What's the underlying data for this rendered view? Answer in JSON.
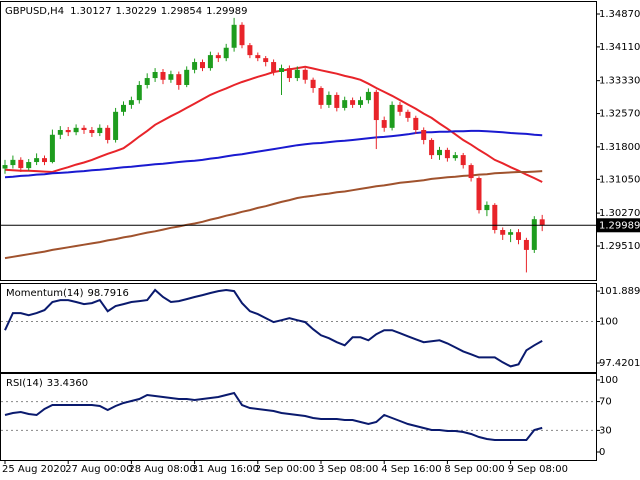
{
  "chart_data": [
    {
      "type": "candlestick",
      "title": "GBPUSD,H4",
      "categories": [
        "25 Aug 2020",
        null,
        null,
        null,
        null,
        null,
        null,
        null,
        "27 Aug 00:00",
        null,
        null,
        null,
        null,
        null,
        null,
        null,
        "28 Aug 08:00",
        null,
        null,
        null,
        null,
        null,
        null,
        null,
        "31 Aug 16:00",
        null,
        null,
        null,
        null,
        null,
        null,
        null,
        "2 Sep 00:00",
        null,
        null,
        null,
        null,
        null,
        null,
        null,
        "3 Sep 08:00",
        null,
        null,
        null,
        null,
        null,
        null,
        null,
        "4 Sep 16:00",
        null,
        null,
        null,
        null,
        null,
        null,
        null,
        "8 Sep 00:00",
        null,
        null,
        null,
        null,
        null,
        null,
        null,
        "9 Sep 08:00",
        null,
        null,
        null,
        null
      ],
      "open": [
        1.313,
        1.3138,
        1.315,
        1.3131,
        1.3145,
        1.3154,
        1.3145,
        1.3208,
        1.3219,
        1.3214,
        1.3224,
        1.3219,
        1.3212,
        1.3224,
        1.3196,
        1.3261,
        1.3277,
        1.3288,
        1.3323,
        1.3339,
        1.3353,
        1.3335,
        1.3348,
        1.3323,
        1.3358,
        1.3376,
        1.3362,
        1.3392,
        1.3385,
        1.3409,
        1.3462,
        1.3415,
        1.3392,
        1.3385,
        1.3376,
        1.3353,
        1.3362,
        1.3339,
        1.3358,
        1.3335,
        1.3316,
        1.3277,
        1.33,
        1.327,
        1.3288,
        1.3277,
        1.3288,
        1.3307,
        1.3242,
        1.3224,
        1.3277,
        1.3261,
        1.3247,
        1.3219,
        1.3196,
        1.3161,
        1.3173,
        1.3154,
        1.3161,
        1.3138,
        1.3108,
        1.3034,
        1.3046,
        1.2988,
        1.2977,
        1.2983,
        1.2965,
        1.2942,
        1.30127
      ],
      "high": [
        1.315,
        1.316,
        1.3156,
        1.3152,
        1.3165,
        1.316,
        1.322,
        1.3228,
        1.3226,
        1.3232,
        1.323,
        1.3226,
        1.3232,
        1.323,
        1.327,
        1.3285,
        1.3296,
        1.3332,
        1.335,
        1.3362,
        1.336,
        1.3356,
        1.3354,
        1.3366,
        1.3384,
        1.3382,
        1.34,
        1.3398,
        1.3418,
        1.3478,
        1.3468,
        1.342,
        1.3398,
        1.339,
        1.3382,
        1.337,
        1.3368,
        1.3366,
        1.3362,
        1.334,
        1.332,
        1.3308,
        1.3306,
        1.3296,
        1.3294,
        1.3296,
        1.3315,
        1.3312,
        1.325,
        1.3285,
        1.3284,
        1.3266,
        1.3252,
        1.3225,
        1.32,
        1.318,
        1.3178,
        1.3168,
        1.3166,
        1.3142,
        1.3112,
        1.3054,
        1.305,
        1.2994,
        1.299,
        1.299,
        1.297,
        1.302,
        1.30229
      ],
      "low": [
        1.3118,
        1.313,
        1.3122,
        1.3125,
        1.3138,
        1.3138,
        1.3142,
        1.3198,
        1.3205,
        1.3207,
        1.321,
        1.3203,
        1.3205,
        1.3188,
        1.319,
        1.3252,
        1.3268,
        1.328,
        1.3315,
        1.333,
        1.3325,
        1.3328,
        1.3312,
        1.3318,
        1.335,
        1.3355,
        1.3356,
        1.3376,
        1.3378,
        1.34,
        1.3408,
        1.3385,
        1.3378,
        1.3366,
        1.3345,
        1.33,
        1.333,
        1.3332,
        1.3326,
        1.3305,
        1.3268,
        1.327,
        1.3262,
        1.3264,
        1.327,
        1.327,
        1.328,
        1.3175,
        1.3215,
        1.3218,
        1.3252,
        1.3238,
        1.321,
        1.3186,
        1.3152,
        1.315,
        1.3146,
        1.3148,
        1.313,
        1.31,
        1.3026,
        1.302,
        1.298,
        1.2965,
        1.296,
        1.2955,
        1.289,
        1.2935,
        1.29854
      ],
      "close": [
        1.3138,
        1.315,
        1.3131,
        1.3145,
        1.3154,
        1.3145,
        1.3208,
        1.3219,
        1.3214,
        1.3224,
        1.3219,
        1.3212,
        1.3224,
        1.3196,
        1.3261,
        1.3277,
        1.3288,
        1.3323,
        1.3339,
        1.3353,
        1.3335,
        1.3348,
        1.3323,
        1.3358,
        1.3376,
        1.3362,
        1.3392,
        1.3385,
        1.3409,
        1.3462,
        1.3415,
        1.3392,
        1.3385,
        1.3376,
        1.3353,
        1.3362,
        1.3339,
        1.3358,
        1.3335,
        1.3316,
        1.3277,
        1.33,
        1.327,
        1.3288,
        1.3277,
        1.3288,
        1.3307,
        1.3242,
        1.3224,
        1.3277,
        1.3261,
        1.3247,
        1.3219,
        1.3196,
        1.3161,
        1.3173,
        1.3154,
        1.3161,
        1.3138,
        1.3108,
        1.3034,
        1.3046,
        1.2988,
        1.2977,
        1.2983,
        1.2965,
        1.2942,
        1.3013,
        1.29989
      ],
      "up_color": "#1e9c1e",
      "down_color": "#e8242a",
      "series": [
        {
          "color": "#e8242a",
          "values": [
            1.3127,
            1.3126,
            1.3125,
            1.3125,
            1.3124,
            1.3123,
            1.3122,
            1.3128,
            1.3133,
            1.3139,
            1.3144,
            1.315,
            1.3157,
            1.3164,
            1.317,
            1.3177,
            1.319,
            1.3204,
            1.3217,
            1.3231,
            1.3241,
            1.3251,
            1.326,
            1.327,
            1.328,
            1.329,
            1.33,
            1.3308,
            1.3315,
            1.3323,
            1.333,
            1.3336,
            1.3342,
            1.3347,
            1.3353,
            1.3356,
            1.3359,
            1.3362,
            1.3365,
            1.3361,
            1.3357,
            1.3353,
            1.3349,
            1.3344,
            1.334,
            1.3335,
            1.3326,
            1.3316,
            1.3307,
            1.3298,
            1.3288,
            1.3278,
            1.3268,
            1.3257,
            1.3247,
            1.3234,
            1.3222,
            1.3209,
            1.3196,
            1.3185,
            1.3173,
            1.3162,
            1.315,
            1.3142,
            1.3133,
            1.3125,
            1.3116,
            1.3108,
            1.3099
          ]
        },
        {
          "color": "#1a1ad0",
          "values": [
            1.311,
            1.3111,
            1.3113,
            1.3114,
            1.3116,
            1.3117,
            1.3119,
            1.312,
            1.3121,
            1.3123,
            1.3124,
            1.3126,
            1.3127,
            1.3129,
            1.3131,
            1.3133,
            1.3134,
            1.3136,
            1.3138,
            1.314,
            1.3141,
            1.3143,
            1.3145,
            1.3147,
            1.3148,
            1.315,
            1.3153,
            1.3155,
            1.3158,
            1.3161,
            1.3163,
            1.3166,
            1.3169,
            1.3172,
            1.3175,
            1.3178,
            1.3181,
            1.3184,
            1.3186,
            1.3188,
            1.3189,
            1.3191,
            1.3193,
            1.3194,
            1.3196,
            1.3198,
            1.32,
            1.3202,
            1.3203,
            1.3205,
            1.3207,
            1.3209,
            1.3212,
            1.3214,
            1.3214,
            1.3215,
            1.3215,
            1.3216,
            1.3216,
            1.3217,
            1.3217,
            1.3216,
            1.3215,
            1.3214,
            1.3212,
            1.3211,
            1.321,
            1.3208,
            1.3207
          ]
        },
        {
          "color": "#a0522d",
          "values": [
            1.2923,
            1.2926,
            1.2929,
            1.2932,
            1.2935,
            1.2938,
            1.2942,
            1.2945,
            1.2948,
            1.2951,
            1.2954,
            1.2957,
            1.296,
            1.2964,
            1.2967,
            1.2971,
            1.2974,
            1.2978,
            1.2982,
            1.2985,
            1.2989,
            1.2993,
            1.2996,
            1.3,
            1.3003,
            1.3007,
            1.3012,
            1.3016,
            1.3021,
            1.3025,
            1.303,
            1.3034,
            1.3039,
            1.3043,
            1.3048,
            1.3053,
            1.3057,
            1.3062,
            1.3065,
            1.3067,
            1.307,
            1.3072,
            1.3075,
            1.3077,
            1.308,
            1.3083,
            1.3086,
            1.3089,
            1.3091,
            1.3094,
            1.3097,
            1.3099,
            1.3101,
            1.3103,
            1.3106,
            1.3108,
            1.311,
            1.3111,
            1.3113,
            1.3114,
            1.3116,
            1.3117,
            1.3119,
            1.312,
            1.3121,
            1.3122,
            1.3122,
            1.3123,
            1.3124
          ]
        }
      ],
      "ylim": [
        1.28725,
        1.35147
      ],
      "yticks": [
        {
          "value": 1.3487,
          "label": "1.34870"
        },
        {
          "value": 1.3411,
          "label": "1.34110"
        },
        {
          "value": 1.3333,
          "label": "1.33330"
        },
        {
          "value": 1.3257,
          "label": "1.32570"
        },
        {
          "value": 1.318,
          "label": "1.31800"
        },
        {
          "value": 1.3105,
          "label": "1.31050"
        },
        {
          "value": 1.3027,
          "label": "1.30270"
        },
        {
          "value": 1.2951,
          "label": "1.29510"
        }
      ]
    },
    {
      "type": "line",
      "title": "Momentum(14)",
      "color": "#0a1a6e",
      "values": [
        99.46,
        100.52,
        100.52,
        100.39,
        100.52,
        100.71,
        101.21,
        101.33,
        101.33,
        101.21,
        101.08,
        101.14,
        101.33,
        100.64,
        100.96,
        101.08,
        101.21,
        101.27,
        101.33,
        101.96,
        101.52,
        101.21,
        101.27,
        101.39,
        101.52,
        101.64,
        101.77,
        101.89,
        101.96,
        101.89,
        101.14,
        100.64,
        100.46,
        100.21,
        99.96,
        100.08,
        100.21,
        100.08,
        99.96,
        99.52,
        99.14,
        98.96,
        98.71,
        98.52,
        99.02,
        99.02,
        98.83,
        99.21,
        99.46,
        99.46,
        99.27,
        99.08,
        98.89,
        98.71,
        98.77,
        98.83,
        98.64,
        98.39,
        98.14,
        97.96,
        97.77,
        97.77,
        97.77,
        97.46,
        97.21,
        97.33,
        98.21,
        98.52,
        98.7916
      ],
      "ylim": [
        96.86,
        102.33
      ],
      "yticks": [
        101.889,
        100,
        97.4201
      ],
      "levels": [
        100
      ]
    },
    {
      "type": "line",
      "title": "RSI(14)",
      "color": "#0a1a6e",
      "values": [
        51.4,
        54.2,
        55.6,
        52.8,
        51.4,
        59.7,
        65.3,
        65.3,
        65.3,
        65.3,
        65.3,
        65.3,
        63.9,
        58.3,
        63.9,
        68.1,
        70.8,
        73.6,
        79.2,
        77.8,
        76.4,
        75.0,
        73.6,
        73.6,
        72.2,
        73.6,
        75.0,
        76.4,
        79.2,
        81.9,
        65.3,
        61.1,
        59.7,
        58.3,
        56.9,
        54.2,
        52.8,
        51.4,
        50.0,
        47.2,
        45.8,
        45.8,
        45.8,
        44.4,
        44.4,
        41.7,
        38.9,
        41.7,
        51.4,
        47.2,
        43.1,
        38.9,
        36.1,
        33.3,
        30.6,
        30.6,
        29.2,
        29.2,
        27.8,
        25.0,
        20.8,
        18.1,
        16.7,
        16.7,
        16.7,
        16.7,
        16.7,
        30.6,
        33.436
      ],
      "value_labels": [
        null,
        null,
        null,
        null,
        null,
        null,
        null,
        null,
        null,
        null,
        null,
        null,
        null,
        null,
        null,
        null,
        null,
        null,
        null,
        null,
        null,
        null,
        null,
        null,
        null,
        null,
        null,
        null,
        null,
        null,
        null,
        null,
        null,
        null,
        null,
        null,
        null,
        null,
        null,
        null,
        null,
        null,
        null,
        null,
        null,
        null,
        null,
        null,
        null,
        null,
        null,
        null,
        null,
        null,
        null,
        null,
        null,
        null,
        null,
        null,
        null,
        null,
        null,
        null,
        null,
        null,
        null,
        null,
        "33.4360"
      ],
      "ylim": [
        -11.1,
        108.3
      ],
      "yticks": [
        100,
        70,
        30,
        0
      ],
      "levels": [
        70,
        30
      ]
    }
  ]
}
